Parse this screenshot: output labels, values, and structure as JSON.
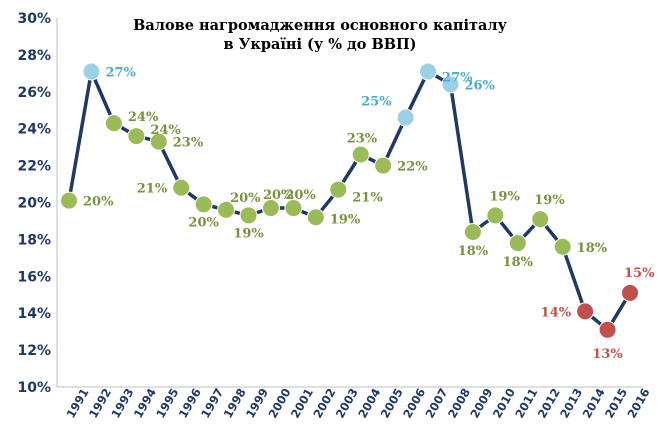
{
  "chart_data": {
    "type": "line",
    "title": [
      "Валове нагромадження основного капіталу",
      "в Україні (у % до ВВП)"
    ],
    "xlabel": "",
    "ylabel": "",
    "ylim": [
      10,
      30
    ],
    "yticks": [
      "10%",
      "12%",
      "14%",
      "16%",
      "18%",
      "20%",
      "22%",
      "24%",
      "26%",
      "28%",
      "30%"
    ],
    "grid": false,
    "line_color": "#203864",
    "x": [
      "1991",
      "1992",
      "1993",
      "1994",
      "1995",
      "1996",
      "1997",
      "1998",
      "1999",
      "2000",
      "2001",
      "2002",
      "2003",
      "2004",
      "2005",
      "2006",
      "2007",
      "2008",
      "2009",
      "2010",
      "2011",
      "2012",
      "2013",
      "2014",
      "2015",
      "2016"
    ],
    "values": [
      20.1,
      27.1,
      24.3,
      23.6,
      23.3,
      20.8,
      19.9,
      19.6,
      19.3,
      19.7,
      19.7,
      19.2,
      20.7,
      22.6,
      22.0,
      24.6,
      27.1,
      26.4,
      18.4,
      19.3,
      17.8,
      19.1,
      17.6,
      14.1,
      13.1,
      15.1
    ],
    "data_labels": [
      "20%",
      "27%",
      "24%",
      "24%",
      "23%",
      "21%",
      "20%",
      "20%",
      "19%",
      "20%",
      "20%",
      "19%",
      "21%",
      "23%",
      "22%",
      "25%",
      "27%",
      "26%",
      "18%",
      "19%",
      "18%",
      "19%",
      "18%",
      "14%",
      "13%",
      "15%"
    ],
    "point_groups": [
      "green",
      "blue",
      "green",
      "green",
      "green",
      "green",
      "green",
      "green",
      "green",
      "green",
      "green",
      "green",
      "green",
      "green",
      "green",
      "blue",
      "blue",
      "blue",
      "green",
      "green",
      "green",
      "green",
      "green",
      "red",
      "red",
      "red"
    ],
    "colors": {
      "green": "#9bbb59",
      "blue": "#9bd1e6",
      "red": "#c0504d",
      "green_text": "#76923c",
      "blue_text": "#4bacc6",
      "red_text": "#c0504d"
    }
  }
}
